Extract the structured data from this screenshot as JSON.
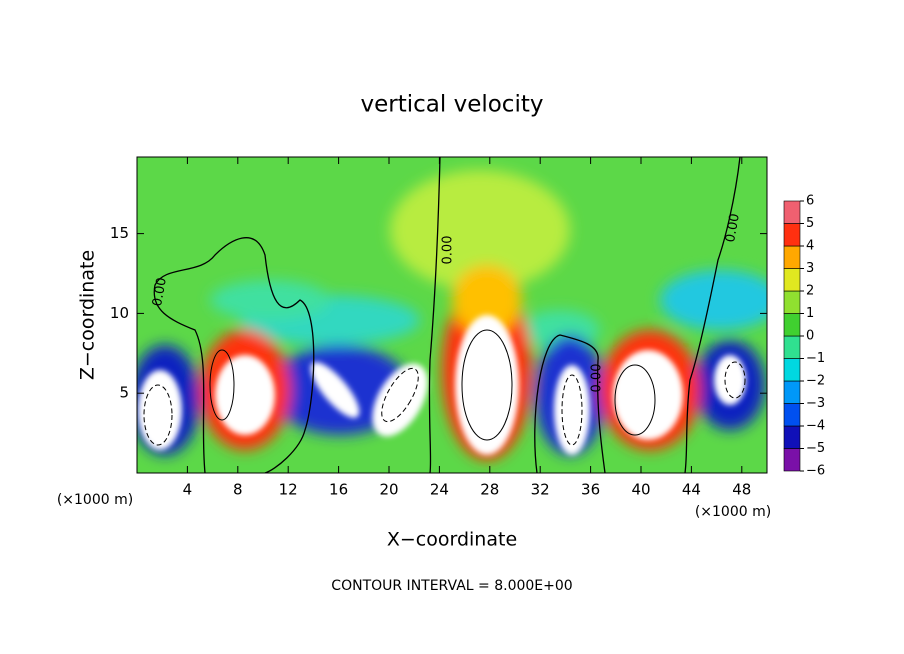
{
  "chart_data": {
    "type": "contour",
    "title": "vertical velocity",
    "x_label": "X−coordinate",
    "y_label": "Z−coordinate",
    "x_unit_left": "(×1000 m)",
    "x_unit_right": "(×1000 m)",
    "footer": "CONTOUR INTERVAL = 8.000E+00",
    "contour_labels": [
      "0.00",
      "0.00",
      "0.00",
      "0.00"
    ],
    "xlim": [
      0,
      50
    ],
    "ylim": [
      0,
      19.8
    ],
    "xticks": [
      4,
      8,
      12,
      16,
      20,
      24,
      28,
      32,
      36,
      40,
      44,
      48
    ],
    "yticks": [
      5,
      10,
      15
    ],
    "colorbar": {
      "ticks": [
        -6,
        -5,
        -4,
        -3,
        -2,
        -1,
        0,
        1,
        2,
        3,
        4,
        5,
        6
      ],
      "tick_labels": [
        "−6",
        "−5",
        "−4",
        "−3",
        "−2",
        "−1",
        "0",
        "1",
        "2",
        "3",
        "4",
        "5",
        "6"
      ],
      "colors": [
        "#7a10a8",
        "#1010b8",
        "#0050f0",
        "#0098f8",
        "#00d8e0",
        "#30e090",
        "#40d030",
        "#90e030",
        "#e0e820",
        "#ffa800",
        "#ff3010",
        "#f06070"
      ]
    }
  }
}
